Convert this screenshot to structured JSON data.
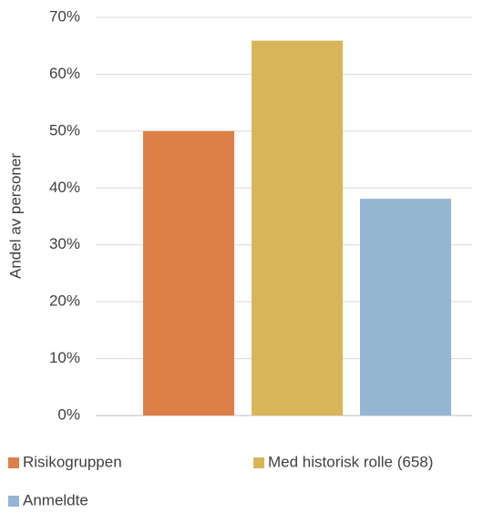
{
  "chart_data": {
    "type": "bar",
    "y_label": "Andel av personer",
    "categories": [
      null
    ],
    "series": [
      {
        "name": "Risikogruppen",
        "color": "#dd8047",
        "values": [
          50.0
        ]
      },
      {
        "name": "Med historisk rolle (658)",
        "color": "#d9b55a",
        "values": [
          65.9
        ]
      },
      {
        "name": "Anmeldte",
        "color": "#94b6d2",
        "values": [
          38.1
        ]
      }
    ],
    "ylim": [
      0,
      70
    ],
    "yticks": [
      {
        "value": 0,
        "label": "0%"
      },
      {
        "value": 10,
        "label": "10%"
      },
      {
        "value": 20,
        "label": "20%"
      },
      {
        "value": 30,
        "label": "30%"
      },
      {
        "value": 40,
        "label": "40%"
      },
      {
        "value": 50,
        "label": "50%"
      },
      {
        "value": 60,
        "label": "60%"
      },
      {
        "value": 70,
        "label": "70%"
      }
    ],
    "grid": true,
    "legend": "bottom"
  }
}
